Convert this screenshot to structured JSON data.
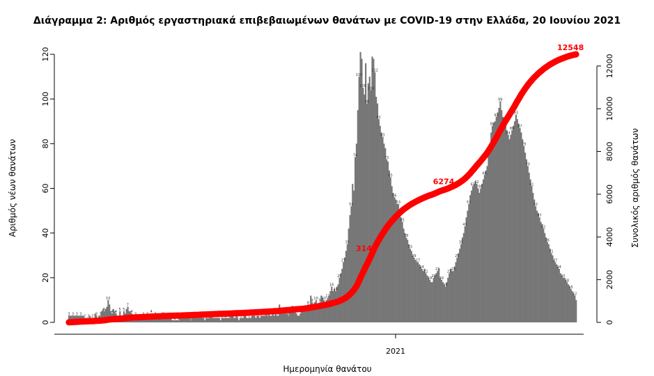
{
  "title": "Διάγραμμα 2: Αριθμός εργαστηριακά επιβεβαιωμένων θανάτων με COVID-19 στην Ελλάδα, 20 Ιουνίου 2021",
  "chart_data": {
    "type": "bar",
    "xlabel": "Ημερομηνία θανάτου",
    "ylabel_left": "Αριθμός νέων θανάτων",
    "ylabel_right": "Συνολικός αριθμός θανάτων",
    "x_tick_label": "2021",
    "ylim_left": [
      0,
      120
    ],
    "yticks_left": [
      0,
      20,
      40,
      60,
      80,
      100,
      120
    ],
    "ylim_right": [
      0,
      12548
    ],
    "yticks_right": [
      0,
      2000,
      4000,
      6000,
      8000,
      10000,
      12000
    ],
    "bar_color": "#777777",
    "line_color": "#ff0000",
    "series": [
      {
        "name": "daily_deaths",
        "values": [
          3,
          3,
          3,
          3,
          3,
          3,
          3,
          3,
          3,
          3,
          3,
          3,
          2,
          2,
          2,
          2,
          3,
          2,
          2,
          2,
          4,
          3,
          2,
          3,
          3,
          5,
          6,
          5,
          6,
          7,
          10,
          8,
          5,
          4,
          6,
          5,
          4,
          3,
          3,
          5,
          3,
          2,
          5,
          4,
          6,
          7,
          5,
          5,
          4,
          3,
          2,
          3,
          2,
          2,
          2,
          3,
          2,
          3,
          2,
          2,
          3,
          3,
          2,
          4,
          3,
          2,
          3,
          3,
          2,
          2,
          2,
          2,
          3,
          2,
          2,
          2,
          2,
          2,
          2,
          1,
          1,
          1,
          1,
          1,
          1,
          2,
          2,
          3,
          2,
          2,
          3,
          2,
          2,
          1,
          2,
          2,
          3,
          2,
          2,
          3,
          2,
          3,
          2,
          2,
          1,
          2,
          2,
          2,
          3,
          3,
          2,
          2,
          2,
          2,
          2,
          2,
          1,
          2,
          2,
          2,
          2,
          2,
          2,
          2,
          3,
          3,
          2,
          2,
          3,
          2,
          1,
          2,
          2,
          2,
          3,
          4,
          2,
          2,
          2,
          2,
          3,
          3,
          3,
          2,
          3,
          3,
          2,
          3,
          3,
          3,
          3,
          4,
          3,
          4,
          3,
          3,
          4,
          3,
          4,
          3,
          3,
          8,
          4,
          4,
          4,
          5,
          4,
          4,
          3,
          5,
          6,
          6,
          5,
          5,
          4,
          3,
          3,
          4,
          6,
          5,
          6,
          7,
          7,
          8,
          7,
          12,
          9,
          8,
          9,
          10,
          8,
          7,
          9,
          12,
          11,
          10,
          9,
          10,
          11,
          12,
          14,
          16,
          14,
          15,
          14,
          16,
          17,
          20,
          22,
          24,
          27,
          29,
          32,
          35,
          42,
          48,
          52,
          62,
          59,
          74,
          80,
          95,
          110,
          121,
          118,
          105,
          102,
          116,
          98,
          107,
          110,
          104,
          119,
          118,
          112,
          101,
          98,
          91,
          88,
          85,
          83,
          80,
          78,
          73,
          72,
          68,
          65,
          61,
          58,
          56,
          55,
          53,
          53,
          50,
          47,
          45,
          42,
          40,
          38,
          37,
          35,
          33,
          32,
          30,
          29,
          28,
          27,
          27,
          26,
          25,
          24,
          23,
          24,
          22,
          21,
          20,
          19,
          18,
          18,
          20,
          21,
          22,
          23,
          24,
          20,
          19,
          18,
          17,
          16,
          18,
          20,
          22,
          24,
          23,
          23,
          25,
          27,
          29,
          31,
          33,
          35,
          38,
          40,
          43,
          47,
          50,
          53,
          57,
          59,
          61,
          62,
          63,
          62,
          60,
          58,
          60,
          62,
          64,
          66,
          68,
          70,
          75,
          80,
          85,
          88,
          89,
          90,
          92,
          94,
          96,
          99,
          95,
          92,
          90,
          88,
          86,
          84,
          82,
          84,
          86,
          88,
          90,
          93,
          91,
          89,
          87,
          85,
          82,
          79,
          76,
          73,
          70,
          67,
          64,
          61,
          58,
          55,
          52,
          50,
          49,
          47,
          45,
          44,
          42,
          40,
          38,
          36,
          35,
          33,
          31,
          30,
          28,
          27,
          26,
          25,
          24,
          22,
          21,
          20,
          20,
          19,
          18,
          17,
          16,
          15,
          14,
          13,
          12,
          10
        ]
      },
      {
        "name": "cumulative_deaths",
        "labels": [
          3140,
          6274,
          12548
        ]
      }
    ],
    "legend": "none",
    "grid": false
  }
}
